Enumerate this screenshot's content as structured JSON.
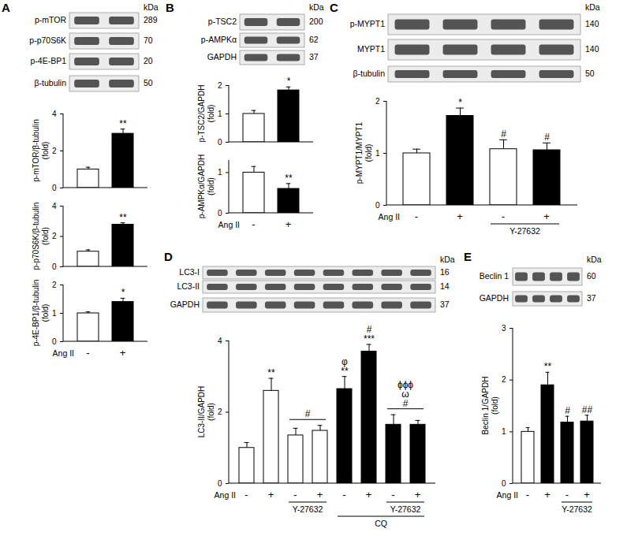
{
  "chart_data": [
    {
      "type": "bar",
      "panel": "A",
      "y_label": [
        "p-mTOR/β-tubulin",
        "(fold)"
      ],
      "categories": [
        null,
        null
      ],
      "values": [
        1.0,
        2.93
      ],
      "errors": [
        0.12,
        0.25
      ],
      "colors": [
        "#ffffff",
        "#000000"
      ],
      "ylim": [
        0,
        4
      ],
      "yticks": [
        0,
        2,
        4
      ],
      "annotations": [
        null,
        "**"
      ]
    },
    {
      "type": "bar",
      "panel": "A",
      "y_label": [
        "p-p70S6K/β-tubulin",
        "(fold)"
      ],
      "categories": [
        null,
        null
      ],
      "values": [
        1.0,
        2.78
      ],
      "errors": [
        0.12,
        0.12
      ],
      "colors": [
        "#ffffff",
        "#000000"
      ],
      "ylim": [
        0,
        4
      ],
      "yticks": [
        0,
        2,
        4
      ],
      "annotations": [
        null,
        "**"
      ]
    },
    {
      "type": "bar",
      "panel": "A",
      "y_label": [
        "p-4E-BP1/β-tubulin",
        "(fold)"
      ],
      "categories": [
        "-",
        "+"
      ],
      "x_label": "Ang II",
      "values": [
        1.0,
        1.4
      ],
      "errors": [
        0.05,
        0.13
      ],
      "colors": [
        "#ffffff",
        "#000000"
      ],
      "ylim": [
        0,
        2
      ],
      "yticks": [
        0,
        1,
        2
      ],
      "annotations": [
        null,
        "*"
      ]
    },
    {
      "type": "bar",
      "panel": "B",
      "y_label": [
        "p-TSC2/GAPDH",
        "(fold)"
      ],
      "categories": [
        null,
        null
      ],
      "values": [
        1.0,
        1.83
      ],
      "errors": [
        0.12,
        0.12
      ],
      "colors": [
        "#ffffff",
        "#000000"
      ],
      "ylim": [
        0,
        2
      ],
      "yticks": [
        0,
        1,
        2
      ],
      "annotations": [
        null,
        "*"
      ]
    },
    {
      "type": "bar",
      "panel": "B",
      "y_label": [
        "p-AMPKα/GAPDH",
        "(fold)"
      ],
      "categories": [
        "-",
        "+"
      ],
      "x_label": "Ang II",
      "values": [
        1.0,
        0.6
      ],
      "errors": [
        0.15,
        0.13
      ],
      "colors": [
        "#ffffff",
        "#000000"
      ],
      "ylim": [
        0,
        1.3
      ],
      "yticks": [
        0,
        1
      ],
      "annotations": [
        null,
        "**"
      ]
    },
    {
      "type": "bar",
      "panel": "C",
      "y_label": [
        "p-MYPT1/MYPT1",
        "(fold)"
      ],
      "categories": [
        "-",
        "+",
        "-",
        "+"
      ],
      "x_label": "Ang II",
      "values": [
        1.0,
        1.72,
        1.08,
        1.06
      ],
      "errors": [
        0.08,
        0.15,
        0.18,
        0.14
      ],
      "colors": [
        "#ffffff",
        "#000000",
        "#ffffff",
        "#000000"
      ],
      "ylim": [
        0,
        2
      ],
      "yticks": [
        0,
        1,
        2
      ],
      "annotations": [
        null,
        "*",
        "#",
        "#"
      ],
      "groups": [
        {
          "label": "Y-27632",
          "from": 2,
          "to": 3
        }
      ]
    },
    {
      "type": "bar",
      "panel": "D",
      "y_label": [
        "LC3-II/GAPDH",
        "(fold)"
      ],
      "categories": [
        "-",
        "+",
        "-",
        "+",
        "-",
        "+",
        "-",
        "+"
      ],
      "x_label": "Ang II",
      "values": [
        1.0,
        2.6,
        1.35,
        1.48,
        2.65,
        3.7,
        1.65,
        1.65
      ],
      "errors": [
        0.15,
        0.35,
        0.2,
        0.15,
        0.35,
        0.2,
        0.28,
        0.12
      ],
      "colors": [
        "#ffffff",
        "#ffffff",
        "#ffffff",
        "#ffffff",
        "#000000",
        "#000000",
        "#000000",
        "#000000"
      ],
      "ylim": [
        0,
        4
      ],
      "yticks": [
        0,
        2,
        4
      ],
      "annotations": [
        null,
        "**",
        null,
        null,
        "φ\n**",
        "#\n***",
        null,
        null
      ],
      "group_annotations": [
        {
          "from": 2,
          "to": 3,
          "label": "#"
        },
        {
          "from": 6,
          "to": 7,
          "label": "ϕϕϕ\nω\n#"
        }
      ],
      "groups": [
        {
          "label": "Y-27632",
          "from": 2,
          "to": 3
        },
        {
          "label": "Y-27632",
          "from": 6,
          "to": 7
        },
        {
          "label": "CQ",
          "from": 4,
          "to": 7
        }
      ]
    },
    {
      "type": "bar",
      "panel": "E",
      "y_label": [
        "Beclin 1/GAPDH",
        "(fold)"
      ],
      "categories": [
        "-",
        "+",
        "-",
        "+"
      ],
      "x_label": "Ang II",
      "values": [
        1.0,
        1.9,
        1.18,
        1.2
      ],
      "errors": [
        0.08,
        0.25,
        0.12,
        0.12
      ],
      "colors": [
        "#ffffff",
        "#000000",
        "#000000",
        "#000000"
      ],
      "ylim": [
        0,
        3
      ],
      "yticks": [
        0,
        1,
        2,
        3
      ],
      "annotations": [
        null,
        "**",
        "#",
        "##"
      ],
      "groups": [
        {
          "label": "Y-27632",
          "from": 2,
          "to": 3
        }
      ]
    }
  ],
  "blots": [
    {
      "panel": "A",
      "kda_header": "kDa",
      "bands": [
        {
          "name": "p-mTOR",
          "kda": 289
        },
        {
          "name": "p-p70S6K",
          "kda": 70
        },
        {
          "name": "p-4E-BP1",
          "kda": 20
        },
        {
          "name": "β-tubulin",
          "kda": 50
        }
      ]
    },
    {
      "panel": "B",
      "kda_header": "kDa",
      "bands": [
        {
          "name": "p-TSC2",
          "kda": 200
        },
        {
          "name": "p-AMPKα",
          "kda": 62
        },
        {
          "name": "GAPDH",
          "kda": 37
        }
      ]
    },
    {
      "panel": "C",
      "kda_header": "kDa",
      "bands": [
        {
          "name": "p-MYPT1",
          "kda": 140
        },
        {
          "name": "MYPT1",
          "kda": 140
        },
        {
          "name": "β-tubulin",
          "kda": 50
        }
      ]
    },
    {
      "panel": "D",
      "kda_header": "kDa",
      "bands": [
        {
          "name": "LC3-I",
          "kda": 16
        },
        {
          "name": "LC3-II",
          "kda": 14
        },
        {
          "name": "GAPDH",
          "kda": 37
        }
      ]
    },
    {
      "panel": "E",
      "kda_header": "kDa",
      "bands": [
        {
          "name": "Beclin 1",
          "kda": 60
        },
        {
          "name": "GAPDH",
          "kda": 37
        }
      ]
    }
  ]
}
